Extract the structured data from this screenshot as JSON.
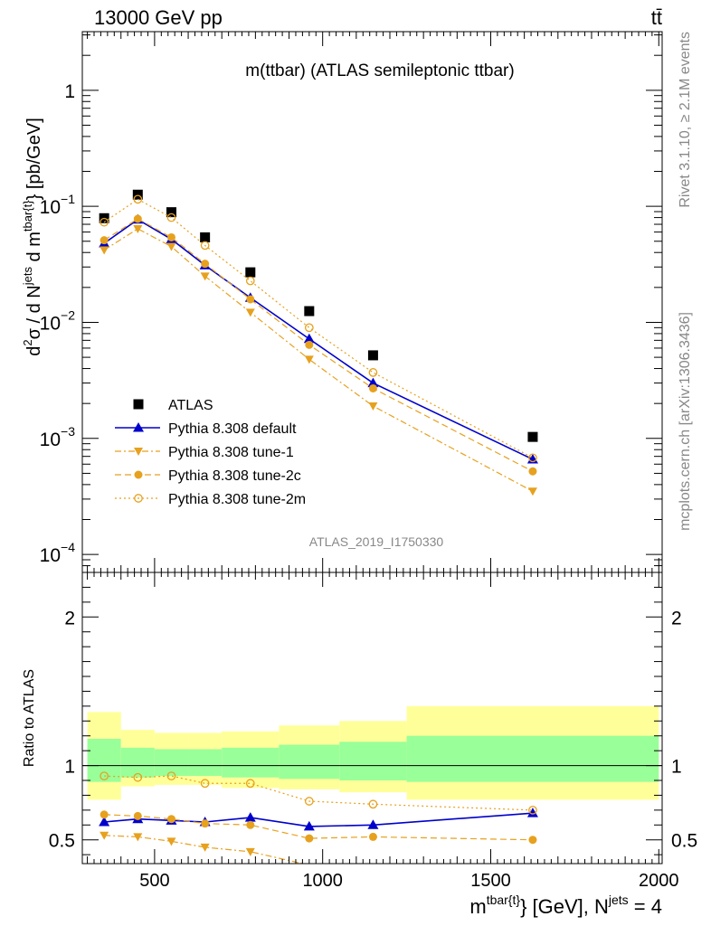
{
  "header": {
    "left": "13000 GeV pp",
    "right": "tt̄",
    "side_top": "Rivet 3.1.10, ≥ 2.1M events",
    "side_bottom": "mcplots.cern.ch [arXiv:1306.3436]"
  },
  "chart_data": [
    {
      "type": "scatter",
      "title": "m(ttbar) (ATLAS semileptonic ttbar)",
      "analysis_label": "ATLAS_2019_I1750330",
      "ylabel": "d²σ / d N^jets d m^tbar{t}} [pb/GeV]",
      "ylabel_parts": {
        "a": "d",
        "b": "2",
        "c": "σ / d N",
        "d": "jets",
        "e": " d m",
        "f": "tbar{t}",
        "g": "} [pb/GeV]"
      },
      "yscale": "log",
      "xlim": [
        285,
        2010
      ],
      "ylim": [
        7e-05,
        3.2
      ],
      "y_ticks": [
        {
          "v": 1,
          "b": "1",
          "e": ""
        },
        {
          "v": 0.1,
          "b": "10",
          "e": "−1"
        },
        {
          "v": 0.01,
          "b": "10",
          "e": "−2"
        },
        {
          "v": 0.001,
          "b": "10",
          "e": "−3"
        },
        {
          "v": 0.0001,
          "b": "10",
          "e": "−4"
        }
      ],
      "x": [
        350,
        450,
        550,
        650,
        785,
        960,
        1150,
        1625
      ],
      "series": [
        {
          "name": "ATLAS",
          "marker": "square",
          "color": "#000000",
          "line": "none",
          "values": [
            0.079,
            0.126,
            0.089,
            0.054,
            0.027,
            0.0125,
            0.0052,
            0.00103
          ]
        },
        {
          "name": "Pythia 8.308 default",
          "marker": "triangle-up",
          "color": "#0000cc",
          "line": "solid",
          "values": [
            0.048,
            0.077,
            0.052,
            0.031,
            0.0163,
            0.0072,
            0.003,
            0.00066
          ]
        },
        {
          "name": "Pythia 8.308 tune-1",
          "marker": "triangle-down",
          "color": "#e6a11e",
          "line": "dashdot",
          "values": [
            0.042,
            0.064,
            0.045,
            0.025,
            0.0122,
            0.0048,
            0.0019,
            0.00035
          ]
        },
        {
          "name": "Pythia 8.308 tune-2c",
          "marker": "circle",
          "color": "#e6a11e",
          "line": "dashed",
          "values": [
            0.051,
            0.078,
            0.054,
            0.032,
            0.0158,
            0.0064,
            0.0027,
            0.00052
          ]
        },
        {
          "name": "Pythia 8.308 tune-2m",
          "marker": "circle-open",
          "color": "#e6a11e",
          "line": "dotted",
          "values": [
            0.073,
            0.115,
            0.08,
            0.046,
            0.0228,
            0.009,
            0.0037,
            0.00068
          ]
        }
      ],
      "legend_position": "lower-left"
    },
    {
      "type": "scatter",
      "ylabel": "Ratio to ATLAS",
      "xlabel_parts": {
        "a": "m",
        "b": "tbar{t}",
        "c": "} [GeV], N",
        "d": "jets",
        "e": " = 4"
      },
      "xlim": [
        285,
        2010
      ],
      "ylim": [
        0.34,
        2.3
      ],
      "y_ticks": [
        {
          "v": 2,
          "t": "2"
        },
        {
          "v": 1,
          "t": "1"
        },
        {
          "v": 0.5,
          "t": "0.5"
        }
      ],
      "x_ticks": [
        {
          "v": 500,
          "t": "500"
        },
        {
          "v": 1000,
          "t": "1000"
        },
        {
          "v": 1500,
          "t": "1500"
        },
        {
          "v": 2000,
          "t": "2000"
        }
      ],
      "bins": [
        300,
        400,
        500,
        600,
        700,
        870,
        1050,
        1250,
        2000
      ],
      "band_yellow": [
        [
          0.77,
          1.36
        ],
        [
          0.86,
          1.24
        ],
        [
          0.87,
          1.22
        ],
        [
          0.87,
          1.22
        ],
        [
          0.85,
          1.23
        ],
        [
          0.84,
          1.27
        ],
        [
          0.82,
          1.3
        ],
        [
          0.77,
          1.4
        ]
      ],
      "band_green": [
        [
          0.89,
          1.18
        ],
        [
          0.92,
          1.12
        ],
        [
          0.93,
          1.11
        ],
        [
          0.93,
          1.11
        ],
        [
          0.92,
          1.12
        ],
        [
          0.91,
          1.14
        ],
        [
          0.9,
          1.16
        ],
        [
          0.89,
          1.2
        ]
      ],
      "x": [
        350,
        450,
        550,
        650,
        785,
        960,
        1150,
        1625
      ],
      "series": [
        {
          "name": "Pythia 8.308 default",
          "marker": "triangle-up",
          "color": "#0000cc",
          "line": "solid",
          "values": [
            0.62,
            0.64,
            0.63,
            0.62,
            0.65,
            0.59,
            0.6,
            0.68
          ]
        },
        {
          "name": "Pythia 8.308 tune-1",
          "marker": "triangle-down",
          "color": "#e6a11e",
          "line": "dashdot",
          "values": [
            0.53,
            0.52,
            0.49,
            0.45,
            0.42,
            0.33,
            0.3,
            0.28
          ]
        },
        {
          "name": "Pythia 8.308 tune-2c",
          "marker": "circle",
          "color": "#e6a11e",
          "line": "dashed",
          "values": [
            0.67,
            0.66,
            0.64,
            0.61,
            0.6,
            0.51,
            0.52,
            0.5
          ]
        },
        {
          "name": "Pythia 8.308 tune-2m",
          "marker": "circle-open",
          "color": "#e6a11e",
          "line": "dotted",
          "values": [
            0.93,
            0.92,
            0.93,
            0.88,
            0.88,
            0.76,
            0.74,
            0.7
          ]
        }
      ]
    }
  ]
}
